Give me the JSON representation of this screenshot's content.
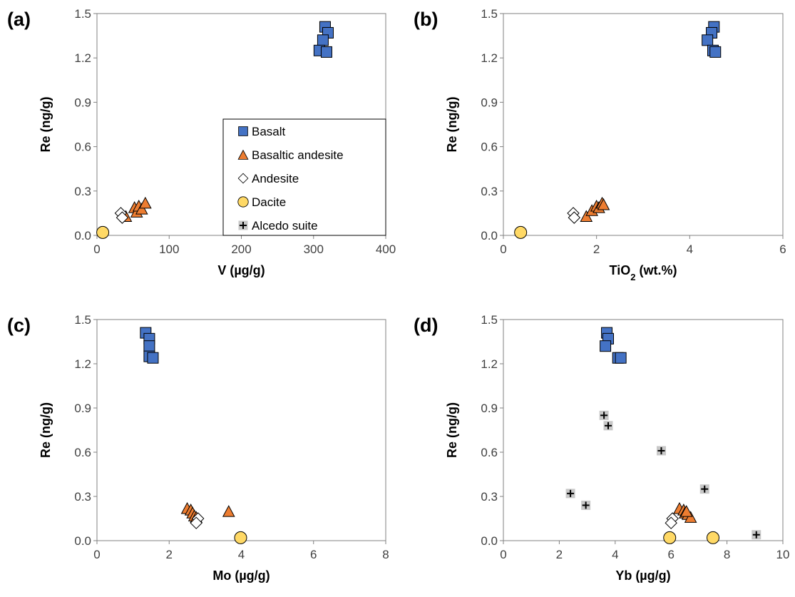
{
  "colors": {
    "basalt": "#4472C4",
    "basaltic_andesite": "#ED7D31",
    "andesite": "#FFFFFF",
    "dacite": "#FFD966",
    "alcedo": "#C8C8C8",
    "axis": "#808080",
    "marker_edge": "#000000"
  },
  "legend": {
    "items": [
      {
        "series": "Basalt",
        "label": "Basalt",
        "marker": "square"
      },
      {
        "series": "Basaltic andesite",
        "label": "Basaltic andesite",
        "marker": "triangle"
      },
      {
        "series": "Andesite",
        "label": "Andesite",
        "marker": "diamond"
      },
      {
        "series": "Dacite",
        "label": "Dacite",
        "marker": "circle"
      },
      {
        "series": "Alcedo suite",
        "label": "Alcedo suite",
        "marker": "plus"
      }
    ]
  },
  "chart_data": [
    {
      "panel": "(a)",
      "type": "scatter",
      "xlabel": "V (µg/g)",
      "xlabel_main": "V (µg/g)",
      "xlabel_sub": "",
      "xlabel_tail": "",
      "ylabel": "Re (ng/g)",
      "xlim": [
        0,
        400
      ],
      "ylim": [
        0,
        1.5
      ],
      "xticks": [
        "0",
        "100",
        "200",
        "300",
        "400"
      ],
      "yticks": [
        "0.0",
        "0.3",
        "0.6",
        "0.9",
        "1.2",
        "1.5"
      ],
      "series": [
        {
          "name": "Basalt",
          "marker": "square",
          "points": [
            [
              316,
              1.41
            ],
            [
              320,
              1.37
            ],
            [
              313,
              1.32
            ],
            [
              308,
              1.25
            ],
            [
              318,
              1.24
            ]
          ]
        },
        {
          "name": "Basaltic andesite",
          "marker": "triangle",
          "points": [
            [
              40,
              0.13
            ],
            [
              52,
              0.19
            ],
            [
              55,
              0.16
            ],
            [
              58,
              0.2
            ],
            [
              62,
              0.18
            ],
            [
              67,
              0.22
            ]
          ]
        },
        {
          "name": "Andesite",
          "marker": "diamond",
          "points": [
            [
              33,
              0.15
            ],
            [
              35,
              0.12
            ]
          ]
        },
        {
          "name": "Dacite",
          "marker": "circle",
          "points": [
            [
              8,
              0.02
            ]
          ]
        }
      ]
    },
    {
      "panel": "(b)",
      "type": "scatter",
      "xlabel": "TiO2 (wt.%)",
      "xlabel_main": "TiO",
      "xlabel_sub": "2",
      "xlabel_tail": " (wt.%)",
      "ylabel": "Re (ng/g)",
      "xlim": [
        0,
        6
      ],
      "ylim": [
        0,
        1.5
      ],
      "xticks": [
        "0",
        "2",
        "4",
        "6"
      ],
      "yticks": [
        "0.0",
        "0.3",
        "0.6",
        "0.9",
        "1.2",
        "1.5"
      ],
      "series": [
        {
          "name": "Basalt",
          "marker": "square",
          "points": [
            [
              4.52,
              1.41
            ],
            [
              4.47,
              1.37
            ],
            [
              4.38,
              1.32
            ],
            [
              4.5,
              1.25
            ],
            [
              4.55,
              1.24
            ]
          ]
        },
        {
          "name": "Basaltic andesite",
          "marker": "triangle",
          "points": [
            [
              1.78,
              0.13
            ],
            [
              1.9,
              0.17
            ],
            [
              2.0,
              0.2
            ],
            [
              2.05,
              0.19
            ],
            [
              2.12,
              0.22
            ],
            [
              2.15,
              0.21
            ]
          ]
        },
        {
          "name": "Andesite",
          "marker": "diamond",
          "points": [
            [
              1.5,
              0.15
            ],
            [
              1.52,
              0.12
            ]
          ]
        },
        {
          "name": "Dacite",
          "marker": "circle",
          "points": [
            [
              0.37,
              0.02
            ]
          ]
        }
      ]
    },
    {
      "panel": "(c)",
      "type": "scatter",
      "xlabel": "Mo (µg/g)",
      "xlabel_main": "Mo (µg/g)",
      "xlabel_sub": "",
      "xlabel_tail": "",
      "ylabel": "Re (ng/g)",
      "xlim": [
        0,
        8
      ],
      "ylim": [
        0,
        1.5
      ],
      "xticks": [
        "0",
        "2",
        "4",
        "6",
        "8"
      ],
      "yticks": [
        "0.0",
        "0.3",
        "0.6",
        "0.9",
        "1.2",
        "1.5"
      ],
      "series": [
        {
          "name": "Basalt",
          "marker": "square",
          "points": [
            [
              1.35,
              1.41
            ],
            [
              1.45,
              1.37
            ],
            [
              1.45,
              1.32
            ],
            [
              1.45,
              1.25
            ],
            [
              1.55,
              1.24
            ]
          ]
        },
        {
          "name": "Basaltic andesite",
          "marker": "triangle",
          "points": [
            [
              2.5,
              0.22
            ],
            [
              2.6,
              0.21
            ],
            [
              2.65,
              0.19
            ],
            [
              2.7,
              0.17
            ],
            [
              2.75,
              0.16
            ],
            [
              3.65,
              0.2
            ]
          ]
        },
        {
          "name": "Andesite",
          "marker": "diamond",
          "points": [
            [
              2.8,
              0.15
            ],
            [
              2.75,
              0.12
            ]
          ]
        },
        {
          "name": "Dacite",
          "marker": "circle",
          "points": [
            [
              3.98,
              0.02
            ]
          ]
        }
      ]
    },
    {
      "panel": "(d)",
      "type": "scatter",
      "xlabel": "Yb (µg/g)",
      "xlabel_main": "Yb (µg/g)",
      "xlabel_sub": "",
      "xlabel_tail": "",
      "ylabel": "Re (ng/g)",
      "xlim": [
        0,
        10
      ],
      "ylim": [
        0,
        1.5
      ],
      "xticks": [
        "0",
        "2",
        "4",
        "6",
        "8",
        "10"
      ],
      "yticks": [
        "0.0",
        "0.3",
        "0.6",
        "0.9",
        "1.2",
        "1.5"
      ],
      "series": [
        {
          "name": "Basalt",
          "marker": "square",
          "points": [
            [
              3.7,
              1.41
            ],
            [
              3.75,
              1.37
            ],
            [
              3.65,
              1.32
            ],
            [
              4.1,
              1.24
            ],
            [
              4.2,
              1.24
            ]
          ]
        },
        {
          "name": "Basaltic andesite",
          "marker": "triangle",
          "points": [
            [
              6.3,
              0.22
            ],
            [
              6.45,
              0.21
            ],
            [
              6.5,
              0.19
            ],
            [
              6.6,
              0.18
            ],
            [
              6.7,
              0.16
            ],
            [
              6.55,
              0.2
            ]
          ]
        },
        {
          "name": "Andesite",
          "marker": "diamond",
          "points": [
            [
              6.05,
              0.15
            ],
            [
              6.0,
              0.12
            ]
          ]
        },
        {
          "name": "Dacite",
          "marker": "circle",
          "points": [
            [
              5.95,
              0.02
            ],
            [
              7.5,
              0.02
            ]
          ]
        },
        {
          "name": "Alcedo suite",
          "marker": "plus",
          "points": [
            [
              3.6,
              0.85
            ],
            [
              3.75,
              0.78
            ],
            [
              5.65,
              0.61
            ],
            [
              2.4,
              0.32
            ],
            [
              7.2,
              0.35
            ],
            [
              2.95,
              0.24
            ],
            [
              9.05,
              0.04
            ]
          ]
        }
      ]
    }
  ]
}
